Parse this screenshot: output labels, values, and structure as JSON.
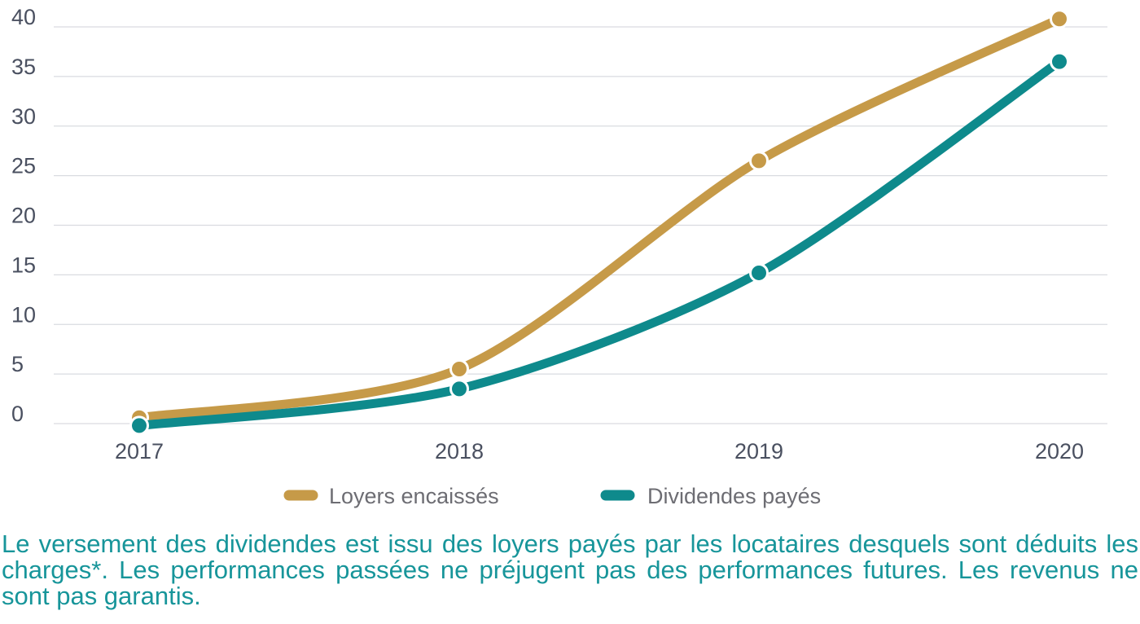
{
  "chart_data": {
    "type": "line",
    "categories": [
      "2017",
      "2018",
      "2019",
      "2020"
    ],
    "series": [
      {
        "name": "Loyers encaissés",
        "values": [
          0.6,
          5.5,
          26.5,
          40.8
        ],
        "color": "#c69a48"
      },
      {
        "name": "Dividendes payés",
        "values": [
          -0.2,
          3.5,
          15.2,
          36.5
        ],
        "color": "#0e8a8c"
      }
    ],
    "ylim": [
      0,
      40
    ],
    "yticks": [
      "0",
      "5",
      "10",
      "15",
      "20",
      "25",
      "30",
      "35",
      "40"
    ],
    "grid": true,
    "legend_position": "bottom-center",
    "title": "",
    "xlabel": "",
    "ylabel": ""
  },
  "caption": "Le versement des dividendes est issu des loyers payés par les locataires desquels sont déduits les charges*. Les performances passées ne préjugent pas des performances futures. Les revenus ne sont pas garantis."
}
